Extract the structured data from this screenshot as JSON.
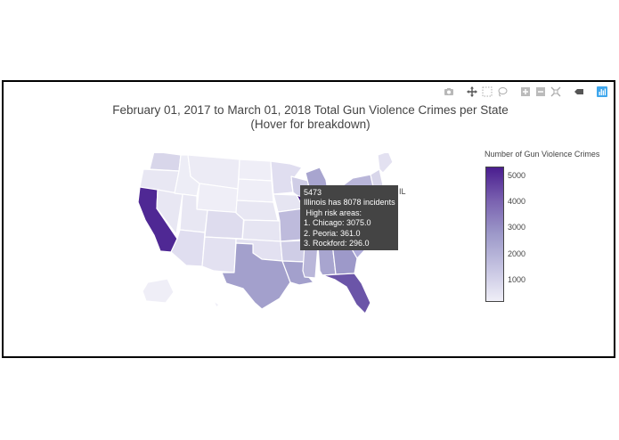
{
  "chart": {
    "title_line1": "February 01, 2017 to March 01, 2018 Total Gun Violence Crimes per State",
    "title_line2": "(Hover for breakdown)"
  },
  "colorbar": {
    "title": "Number of Gun Violence Crimes",
    "ticks": [
      "5000",
      "4000",
      "3000",
      "2000",
      "1000"
    ],
    "colors": [
      "#efeef7",
      "#c5c3e1",
      "#9d99c9",
      "#7a62b0",
      "#4a1d8f"
    ]
  },
  "tooltip": {
    "line1": "5473",
    "line2": "Illinois has 8078 incidents",
    "line3": " High risk areas:",
    "line4": "1. Chicago: 3075.0",
    "line5": "2. Peoria: 361.0",
    "line6": "3. Rockford: 296.0",
    "label": "IL"
  },
  "modebar": {
    "icons": [
      "camera-icon",
      "pan-icon",
      "box-select-icon",
      "lasso-icon",
      "zoom-in-icon",
      "zoom-out-icon",
      "reset-icon",
      "toggle-hover-icon",
      "plotly-logo-icon"
    ]
  }
}
